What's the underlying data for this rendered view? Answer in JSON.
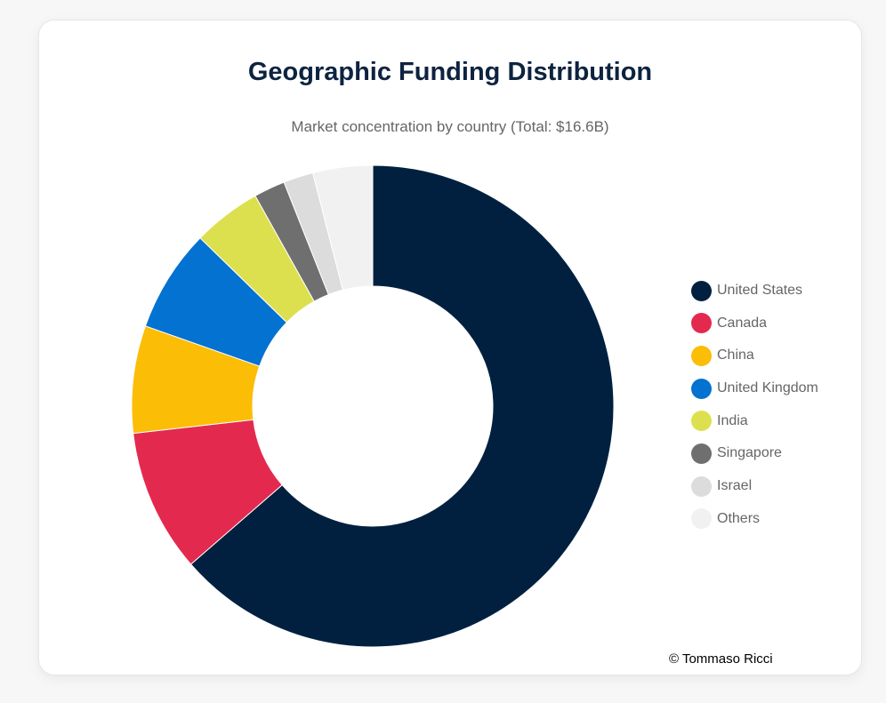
{
  "chart_data": {
    "type": "pie",
    "variant": "donut",
    "title": "Geographic Funding Distribution",
    "subtitle": "Market concentration by country (Total: $16.6B)",
    "legend_position": "right",
    "categories": [
      "United States",
      "Canada",
      "China",
      "United Kingdom",
      "India",
      "Singapore",
      "Israel",
      "Others"
    ],
    "values": [
      63.6,
      9.6,
      7.2,
      6.9,
      4.6,
      2.1,
      2.0,
      4.0
    ],
    "colors": [
      "#012040",
      "#e4294e",
      "#fbbd06",
      "#0372d1",
      "#dde04e",
      "#6f6f6f",
      "#dcdcdc",
      "#f1f1f1"
    ]
  },
  "credit": "© Tommaso Ricci"
}
